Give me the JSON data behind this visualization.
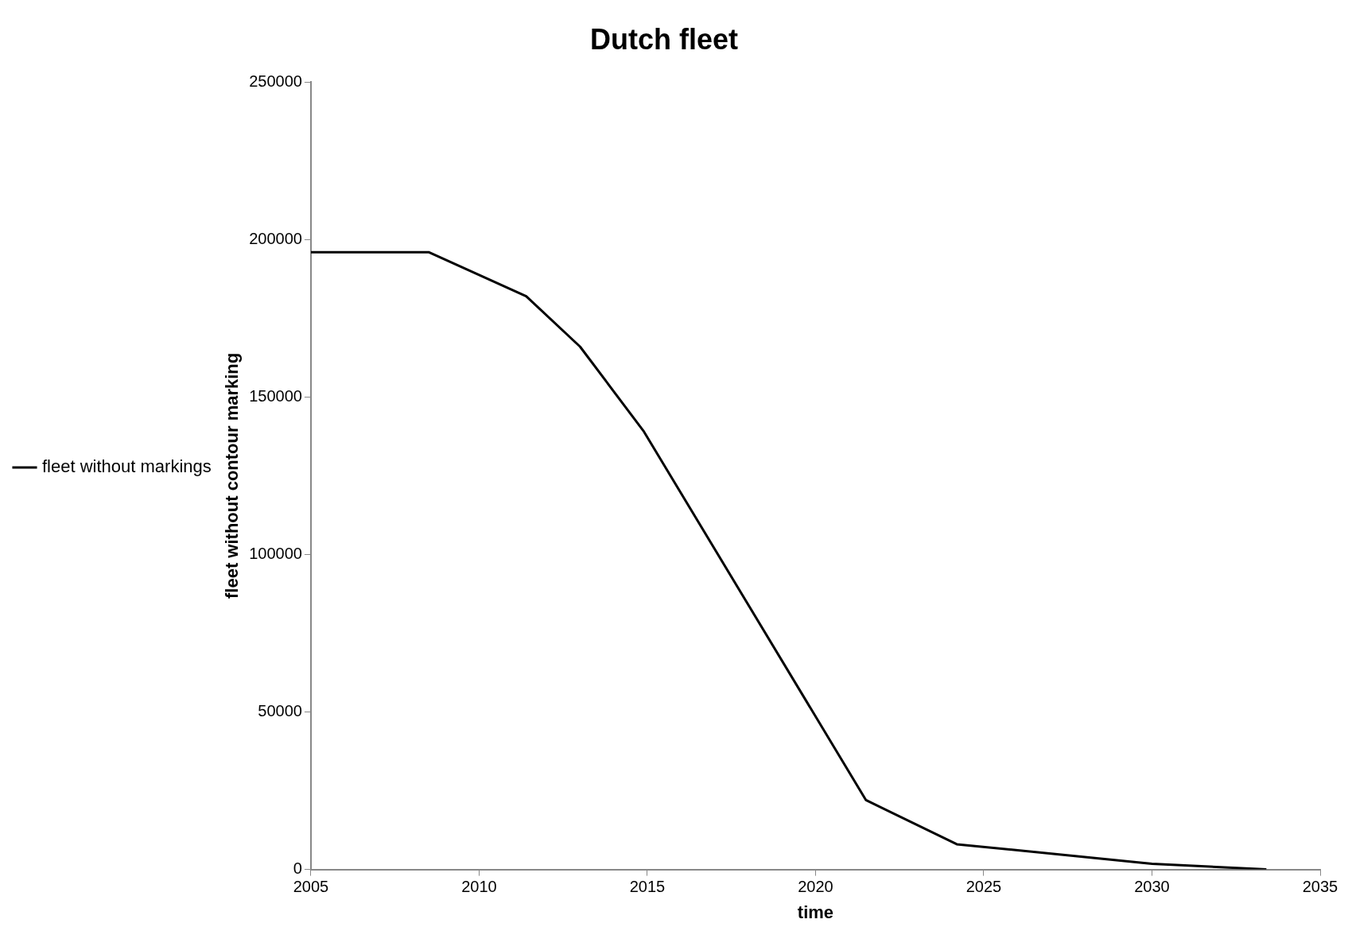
{
  "chart_data": {
    "type": "line",
    "title": "Dutch fleet",
    "xlabel": "time",
    "ylabel": "fleet without contour marking",
    "x": [
      2005,
      2008.5,
      2011.4,
      2013,
      2014.9,
      2021.5,
      2024.2,
      2030,
      2033.4
    ],
    "series": [
      {
        "name": "fleet without markings",
        "color": "#000000",
        "values": [
          196000,
          196000,
          182000,
          166000,
          139000,
          22000,
          8000,
          1800,
          0
        ]
      }
    ],
    "xlim": [
      2005,
      2035
    ],
    "xticks": [
      2005,
      2010,
      2015,
      2020,
      2025,
      2030,
      2035
    ],
    "ylim": [
      0,
      250000
    ],
    "yticks": [
      0,
      50000,
      100000,
      150000,
      200000,
      250000
    ],
    "grid": false,
    "legend": "left",
    "marker": "none",
    "line_style": "solid"
  }
}
